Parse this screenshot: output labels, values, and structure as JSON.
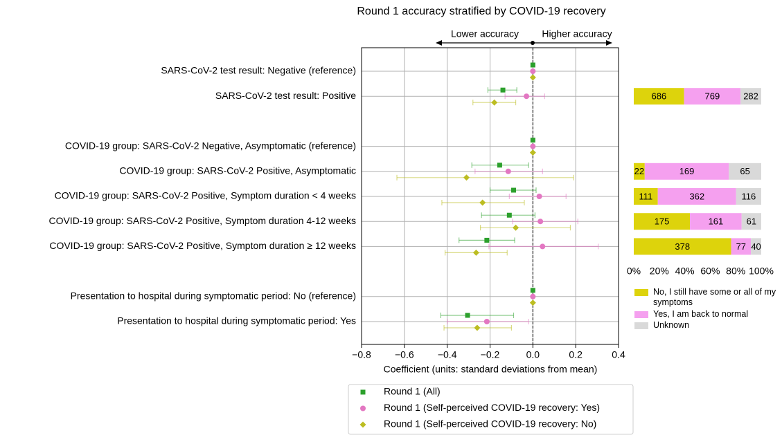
{
  "chart_data": [
    {
      "type": "forest",
      "title": "Round 1 accuracy stratified by COVID-19 recovery",
      "xlabel": "Coefficient (units: standard deviations from mean)",
      "annotations": [
        "Lower accuracy",
        "Higher accuracy"
      ],
      "categories": [
        "SARS-CoV-2 test result: Negative (reference)",
        "SARS-CoV-2 test result: Positive",
        null,
        "COVID-19 group: SARS-CoV-2 Negative, Asymptomatic (reference)",
        "COVID-19 group: SARS-CoV-2 Positive, Asymptomatic",
        "COVID-19 group: SARS-CoV-2 Positive, Symptom duration < 4 weeks",
        "COVID-19 group: SARS-CoV-2 Positive, Symptom duration 4-12 weeks",
        "COVID-19 group: SARS-CoV-2 Positive, Symptom duration ≥ 12 weeks",
        null,
        "Presentation to hospital during symptomatic period: No (reference)",
        "Presentation to hospital during symptomatic period: Yes"
      ],
      "series": [
        {
          "name": "Round 1 (All)",
          "color": "#2ca02c",
          "marker": "square",
          "values": [
            0,
            -0.14,
            null,
            0,
            -0.155,
            -0.09,
            -0.11,
            -0.215,
            null,
            0,
            -0.305
          ],
          "ci_low": [
            null,
            -0.21,
            null,
            null,
            -0.285,
            -0.2,
            -0.24,
            -0.345,
            null,
            null,
            -0.43
          ],
          "ci_high": [
            null,
            -0.075,
            null,
            null,
            -0.02,
            0.015,
            0.01,
            -0.085,
            null,
            null,
            -0.09
          ]
        },
        {
          "name": "Round 1 (Self-perceived COVID-19 recovery: Yes)",
          "color": "#e377c2",
          "marker": "circle",
          "values": [
            0,
            -0.03,
            null,
            0,
            -0.115,
            0.03,
            0.035,
            0.045,
            null,
            0,
            -0.215
          ],
          "ci_low": [
            null,
            -0.13,
            null,
            null,
            -0.27,
            -0.11,
            -0.095,
            -0.205,
            null,
            null,
            -0.4
          ],
          "ci_high": [
            null,
            0.055,
            null,
            null,
            0.045,
            0.155,
            0.21,
            0.305,
            null,
            null,
            -0.02
          ]
        },
        {
          "name": "Round 1 (Self-perceived COVID-19 recovery: No)",
          "color": "#bcbd22",
          "marker": "diamond",
          "values": [
            0,
            -0.18,
            null,
            0,
            -0.31,
            -0.235,
            -0.08,
            -0.265,
            null,
            0,
            -0.26
          ],
          "ci_low": [
            null,
            -0.28,
            null,
            null,
            -0.635,
            -0.425,
            -0.245,
            -0.41,
            null,
            null,
            -0.415
          ],
          "ci_high": [
            null,
            -0.08,
            null,
            null,
            0.19,
            -0.04,
            0.175,
            -0.12,
            null,
            null,
            -0.1
          ]
        }
      ],
      "xlim": [
        -0.8,
        0.4
      ],
      "xticks": [
        {
          "value": -0.8,
          "label": "−0.8"
        },
        {
          "value": -0.6,
          "label": "−0.6"
        },
        {
          "value": -0.4,
          "label": "−0.4"
        },
        {
          "value": -0.2,
          "label": "−0.2"
        },
        {
          "value": 0,
          "label": "0.0"
        },
        0.2,
        0.4
      ],
      "grid": true
    },
    {
      "type": "stacked-bar",
      "series": [
        {
          "name": "No, I still have some or all of my symptoms",
          "color": "#ddd30c",
          "values": [
            null,
            686,
            null,
            null,
            22,
            111,
            175,
            378,
            null,
            null,
            null
          ]
        },
        {
          "name": "Yes, I am back to normal",
          "color": "#f5a0ef",
          "values": [
            null,
            769,
            null,
            null,
            169,
            362,
            161,
            77,
            null,
            null,
            null
          ]
        },
        {
          "name": "Unknown",
          "color": "#d9d9d9",
          "values": [
            null,
            282,
            null,
            null,
            65,
            116,
            61,
            40,
            null,
            null,
            null
          ]
        }
      ],
      "xlim": [
        0,
        100
      ],
      "xticks": [
        {
          "value": 0,
          "label": "0%"
        },
        {
          "value": 20,
          "label": "20%"
        },
        {
          "value": 40,
          "label": "40%"
        },
        {
          "value": 60,
          "label": "60%"
        },
        {
          "value": 80,
          "label": "80%"
        },
        {
          "value": 100,
          "label": "100%"
        }
      ]
    }
  ]
}
